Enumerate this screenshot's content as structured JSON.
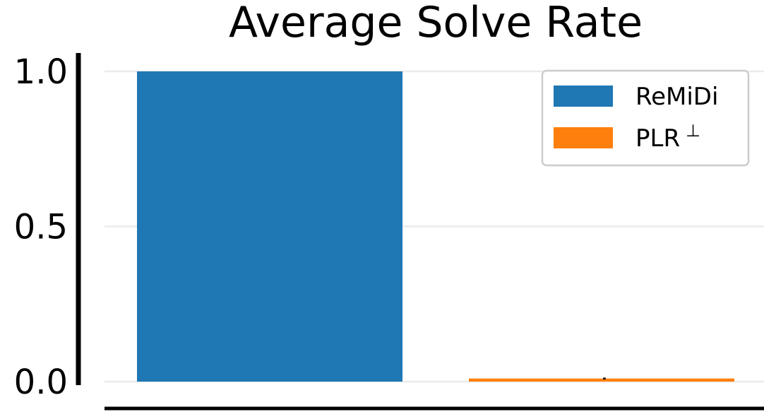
{
  "chart_data": {
    "type": "bar",
    "title": "Average Solve Rate",
    "xlabel": "",
    "ylabel": "",
    "ylim": [
      0,
      1
    ],
    "yticks": [
      "0.0",
      "0.5",
      "1.0"
    ],
    "grid": true,
    "legend_position": "top-right",
    "series": [
      {
        "name": "ReMiDi",
        "value": 1.0,
        "error": 0.0,
        "color": "#1f77b4"
      },
      {
        "name": "PLR",
        "name_superscript": "⊥",
        "value": 0.01,
        "error": 0.003,
        "color": "#ff7f0e"
      }
    ]
  }
}
